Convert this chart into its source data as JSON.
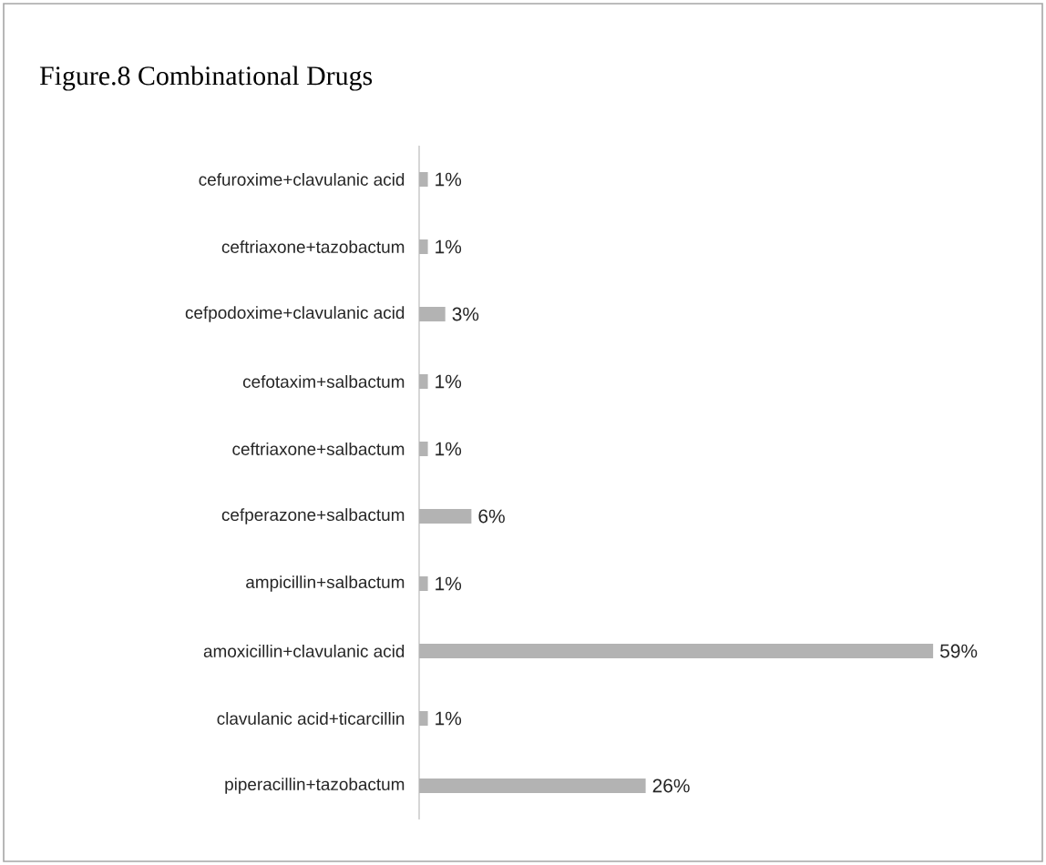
{
  "chart_data": {
    "type": "bar",
    "orientation": "horizontal",
    "title": "Figure.8 Combinational Drugs",
    "categories": [
      "cefuroxime+clavulanic acid",
      "ceftriaxone+tazobactum",
      "cefpodoxime+clavulanic acid",
      "cefotaxim+salbactum",
      "ceftriaxone+salbactum",
      "cefperazone+salbactum",
      "ampicillin+salbactum",
      "amoxicillin+clavulanic acid",
      "clavulanic acid+ticarcillin",
      "piperacillin+tazobactum"
    ],
    "values": [
      1,
      1,
      3,
      1,
      1,
      6,
      1,
      59,
      1,
      26
    ],
    "value_labels": [
      "1%",
      "1%",
      "3%",
      "1%",
      "1%",
      "6%",
      "1%",
      "59%",
      "1%",
      "26%"
    ],
    "color": "#b3b3b3"
  }
}
